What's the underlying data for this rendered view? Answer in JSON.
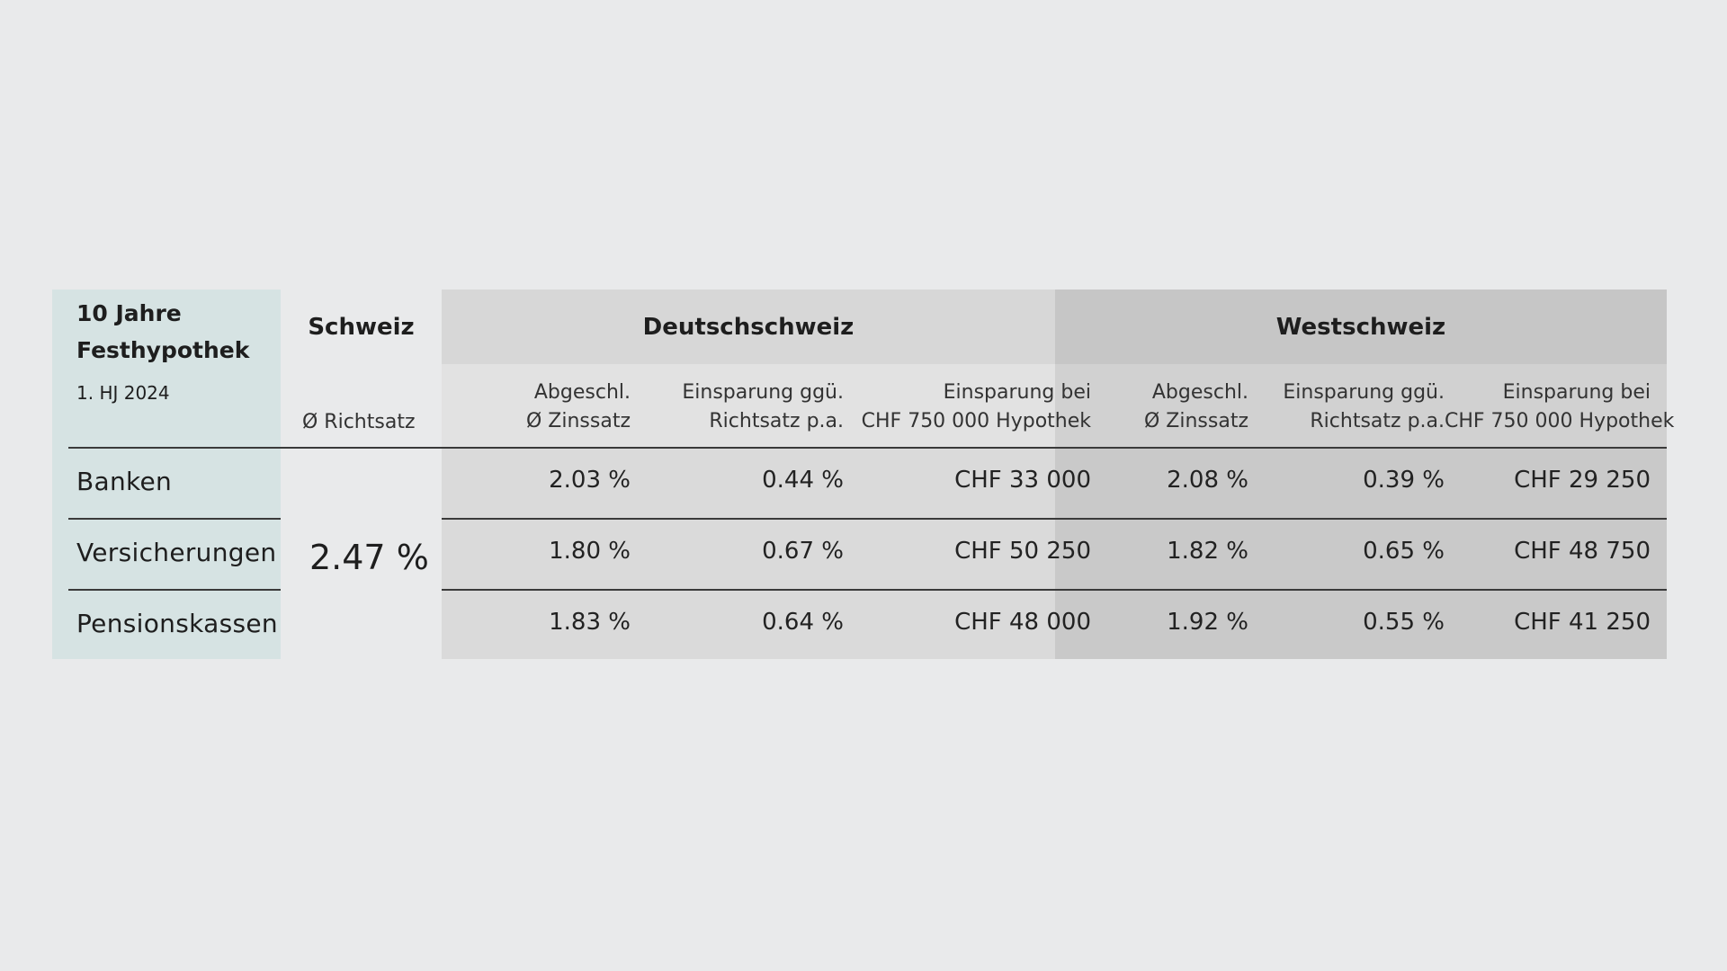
{
  "chart_data": {
    "type": "table",
    "title": [
      "10 Jahre",
      "Festhypothek"
    ],
    "period": "1. HJ 2024",
    "groups": {
      "schweiz": "Schweiz",
      "deutschschweiz": "Deutschschweiz",
      "westschweiz": "Westschweiz"
    },
    "subheaders": {
      "richtsatz": "Ø Richtsatz",
      "zinssatz": [
        "Abgeschl.",
        "Ø Zinssatz"
      ],
      "einsparung_pa": [
        "Einsparung ggü.",
        "Richtsatz p.a."
      ],
      "einsparung_chf": [
        "Einsparung bei",
        "CHF 750 000 Hypothek"
      ]
    },
    "schweiz_richtsatz": "2.47 %",
    "rows": [
      {
        "label": "Banken",
        "deutschschweiz": [
          "2.03 %",
          "0.44 %",
          "CHF 33 000"
        ],
        "westschweiz": [
          "2.08 %",
          "0.39 %",
          "CHF 29 250"
        ]
      },
      {
        "label": "Versicherungen",
        "deutschschweiz": [
          "1.80 %",
          "0.67 %",
          "CHF 50 250"
        ],
        "westschweiz": [
          "1.82 %",
          "0.65 %",
          "CHF 48 750"
        ]
      },
      {
        "label": "Pensionskassen",
        "deutschschweiz": [
          "1.83 %",
          "0.64 %",
          "CHF 48 000"
        ],
        "westschweiz": [
          "1.92 %",
          "0.55 %",
          "CHF 41 250"
        ]
      }
    ],
    "colors": {
      "page_background": "#e9eaeb",
      "label_column": "#d6e3e3",
      "deutschschweiz": "#dadada",
      "westschweiz": "#c9c9c9"
    }
  }
}
